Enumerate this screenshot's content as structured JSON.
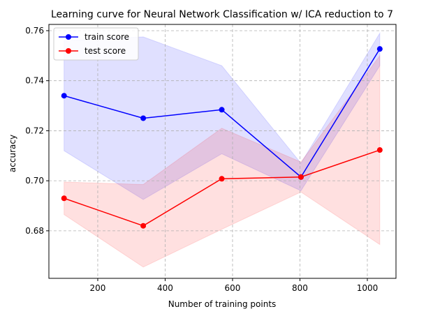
{
  "chart_data": {
    "type": "line",
    "title": "Learning curve for Neural Network Classification w/ ICA reduction to 7",
    "xlabel": "Number of training points",
    "ylabel": "accuracy",
    "xlim": [
      55,
      1085
    ],
    "ylim": [
      0.661,
      0.7625
    ],
    "xticks": [
      200,
      400,
      600,
      800,
      1000
    ],
    "yticks": [
      0.68,
      0.7,
      0.72,
      0.74,
      0.76
    ],
    "ytick_labels": [
      "0.68",
      "0.70",
      "0.72",
      "0.74",
      "0.76"
    ],
    "grid": true,
    "legend_position": "top-left",
    "x": [
      100,
      335,
      568,
      803,
      1037
    ],
    "series": [
      {
        "name": "train score",
        "color": "#0000ff",
        "band_color": "#0000ff",
        "values": [
          0.734,
          0.725,
          0.7284,
          0.7015,
          0.7527
        ],
        "upper": [
          0.756,
          0.7575,
          0.746,
          0.707,
          0.759
        ],
        "lower": [
          0.712,
          0.6925,
          0.7108,
          0.696,
          0.746
        ]
      },
      {
        "name": "test score",
        "color": "#ff0000",
        "band_color": "#ff0000",
        "values": [
          0.693,
          0.682,
          0.7008,
          0.7015,
          0.7123
        ],
        "upper": [
          0.6995,
          0.6985,
          0.721,
          0.7075,
          0.75
        ],
        "lower": [
          0.6865,
          0.6655,
          0.6806,
          0.6955,
          0.6745
        ]
      }
    ]
  }
}
